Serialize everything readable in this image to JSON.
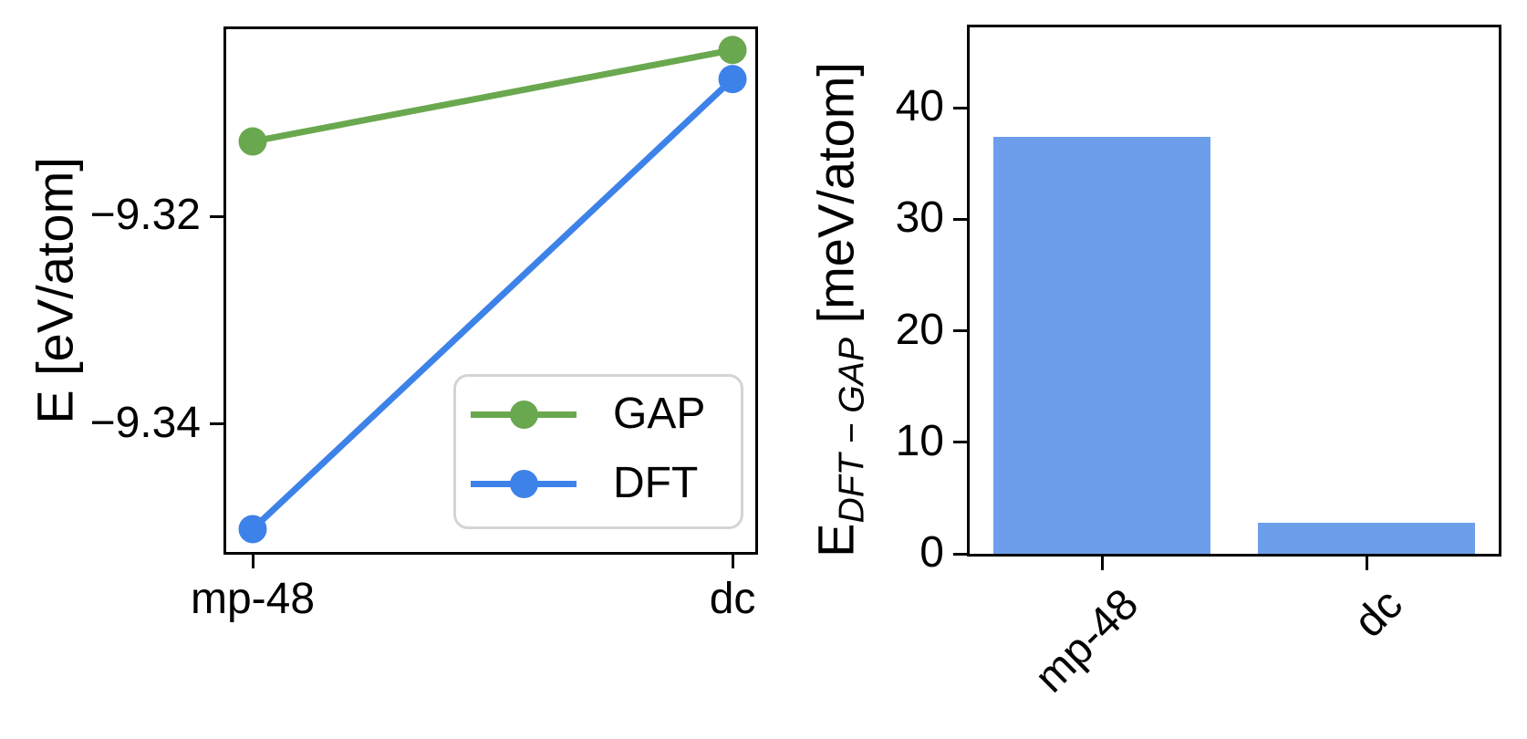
{
  "figure": {
    "background": "#ffffff"
  },
  "chart_data": [
    {
      "type": "line",
      "title": "",
      "categories": [
        "mp-48",
        "dc"
      ],
      "series": [
        {
          "name": "GAP",
          "color": "#6aa84f",
          "values": [
            -9.3128,
            -9.304
          ]
        },
        {
          "name": "DFT",
          "color": "#3d82e8",
          "values": [
            -9.3501,
            -9.3068
          ]
        }
      ],
      "xlabel": "",
      "ylabel": "E [eV/atom]",
      "yticks": [
        -9.32,
        -9.34
      ],
      "ytick_labels": [
        "−9.32",
        "−9.34"
      ],
      "ylim": [
        -9.3523,
        -9.302
      ],
      "grid": false,
      "legend": {
        "position": "lower right",
        "entries": [
          "GAP",
          "DFT"
        ]
      }
    },
    {
      "type": "bar",
      "title": "",
      "categories": [
        "mp-48",
        "dc"
      ],
      "values": [
        37.4,
        2.8
      ],
      "bar_color": "#6d9eeb",
      "xlabel": "",
      "ylabel_text": "E_{DFT − GAP} [meV/atom]",
      "ylabel_prefix": "E",
      "ylabel_sub": "DFT − GAP",
      "ylabel_suffix": " [meV/atom]",
      "yticks": [
        0,
        10,
        20,
        30,
        40
      ],
      "ylim": [
        0,
        47.2
      ],
      "grid": false
    }
  ]
}
